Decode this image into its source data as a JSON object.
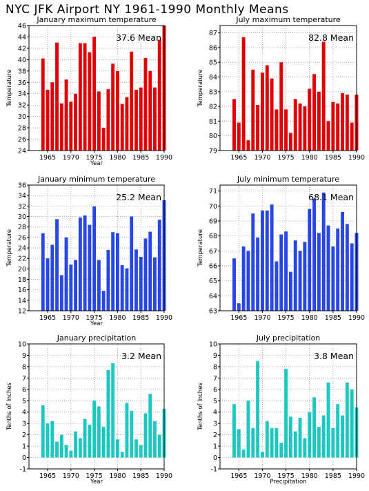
{
  "title": "NYC JFK Airport NY   1961-1990 Monthly Means",
  "colors": {
    "red": "#e00000",
    "blue": "#2846e6",
    "teal": "#1ec8c0"
  },
  "chart_data": [
    {
      "type": "bar",
      "title": "January maximum temperature",
      "ylabel": "Temperature",
      "xlabel": "Year",
      "mean_label": "37.6  Mean",
      "color": "red",
      "ylim": [
        24,
        46
      ],
      "yticks": [
        24,
        26,
        28,
        30,
        32,
        34,
        36,
        38,
        40,
        42,
        44,
        46
      ],
      "xlim": [
        1961,
        1990
      ],
      "xticks": [
        1965,
        1970,
        1975,
        1980,
        1985,
        1990
      ],
      "x": [
        1964,
        1965,
        1966,
        1967,
        1968,
        1969,
        1970,
        1971,
        1972,
        1973,
        1974,
        1975,
        1976,
        1977,
        1978,
        1979,
        1980,
        1981,
        1982,
        1983,
        1984,
        1985,
        1986,
        1987,
        1988,
        1989,
        1990
      ],
      "values": [
        40.2,
        34.7,
        36.0,
        43.0,
        32.3,
        36.5,
        32.6,
        34.0,
        42.9,
        42.9,
        41.3,
        44.0,
        34.4,
        28.0,
        34.8,
        39.3,
        38.0,
        32.2,
        33.4,
        41.4,
        34.7,
        35.1,
        40.3,
        38.0,
        35.1,
        43.5,
        46.0
      ]
    },
    {
      "type": "bar",
      "title": "July maximum temperature",
      "ylabel": "Temperature",
      "xlabel": "",
      "mean_label": "82.8  Mean",
      "color": "red",
      "ylim": [
        79,
        87.5
      ],
      "yticks": [
        79,
        80,
        81,
        82,
        83,
        84,
        85,
        86,
        87
      ],
      "xlim": [
        1961,
        1990
      ],
      "xticks": [
        1965,
        1970,
        1975,
        1980,
        1985,
        1990
      ],
      "x": [
        1964,
        1965,
        1966,
        1967,
        1968,
        1969,
        1970,
        1971,
        1972,
        1973,
        1974,
        1975,
        1976,
        1977,
        1978,
        1979,
        1980,
        1981,
        1982,
        1983,
        1984,
        1985,
        1986,
        1987,
        1988,
        1989,
        1990
      ],
      "values": [
        82.5,
        80.9,
        86.7,
        79.7,
        84.5,
        82.1,
        84.3,
        84.8,
        83.9,
        81.8,
        85.0,
        81.8,
        80.2,
        82.5,
        82.2,
        82.0,
        83.2,
        84.2,
        83.0,
        86.4,
        81.0,
        82.3,
        82.2,
        82.9,
        82.8,
        80.9,
        82.8
      ]
    },
    {
      "type": "bar",
      "title": "January minimum temperature",
      "ylabel": "Temperature",
      "xlabel": "Year",
      "mean_label": "25.2  Mean",
      "color": "blue",
      "ylim": [
        12,
        36
      ],
      "yticks": [
        12,
        14,
        16,
        18,
        20,
        22,
        24,
        26,
        28,
        30,
        32,
        34,
        36
      ],
      "xlim": [
        1961,
        1990
      ],
      "xticks": [
        1965,
        1970,
        1975,
        1980,
        1985,
        1990
      ],
      "x": [
        1964,
        1965,
        1966,
        1967,
        1968,
        1969,
        1970,
        1971,
        1972,
        1973,
        1974,
        1975,
        1976,
        1977,
        1978,
        1979,
        1980,
        1981,
        1982,
        1983,
        1984,
        1985,
        1986,
        1987,
        1988,
        1989,
        1990
      ],
      "values": [
        26.8,
        22.0,
        24.6,
        29.5,
        18.8,
        26.0,
        20.8,
        21.7,
        29.8,
        30.2,
        28.4,
        31.9,
        21.7,
        15.8,
        23.6,
        27.0,
        26.8,
        20.7,
        20.1,
        30.0,
        23.7,
        22.3,
        25.8,
        27.1,
        22.2,
        29.4,
        33.1
      ]
    },
    {
      "type": "bar",
      "title": "July minimum temperature",
      "ylabel": "Temperature",
      "xlabel": "",
      "mean_label": "68.1  Mean",
      "color": "blue",
      "ylim": [
        63,
        71.4
      ],
      "yticks": [
        63,
        64,
        65,
        66,
        67,
        68,
        69,
        70,
        71
      ],
      "xlim": [
        1961,
        1990
      ],
      "xticks": [
        1965,
        1970,
        1975,
        1980,
        1985,
        1990
      ],
      "x": [
        1964,
        1965,
        1966,
        1967,
        1968,
        1969,
        1970,
        1971,
        1972,
        1973,
        1974,
        1975,
        1976,
        1977,
        1978,
        1979,
        1980,
        1981,
        1982,
        1983,
        1984,
        1985,
        1986,
        1987,
        1988,
        1989,
        1990
      ],
      "values": [
        66.5,
        63.5,
        67.3,
        67.0,
        69.5,
        67.9,
        69.7,
        69.7,
        70.1,
        66.3,
        68.1,
        68.3,
        65.6,
        67.7,
        67.0,
        67.6,
        69.8,
        70.5,
        68.2,
        70.9,
        68.7,
        67.3,
        68.5,
        69.6,
        68.8,
        67.5,
        68.2
      ]
    },
    {
      "type": "bar",
      "title": "January precipitation",
      "ylabel": "Tenths of Inches",
      "xlabel": "Year",
      "mean_label": "3.2  Mean",
      "color": "teal",
      "ylim": [
        -1,
        10
      ],
      "yticks": [
        -1,
        0,
        1,
        2,
        3,
        4,
        5,
        6,
        7,
        8,
        9,
        10
      ],
      "xlim": [
        1961,
        1990
      ],
      "xticks": [
        1965,
        1970,
        1975,
        1980,
        1985,
        1990
      ],
      "x": [
        1964,
        1965,
        1966,
        1967,
        1968,
        1969,
        1970,
        1971,
        1972,
        1973,
        1974,
        1975,
        1976,
        1977,
        1978,
        1979,
        1980,
        1981,
        1982,
        1983,
        1984,
        1985,
        1986,
        1987,
        1988,
        1989,
        1990
      ],
      "values": [
        4.6,
        3.0,
        3.2,
        1.4,
        2.0,
        1.1,
        0.6,
        2.3,
        1.7,
        3.4,
        2.9,
        5.0,
        4.5,
        2.7,
        7.7,
        8.3,
        1.6,
        0.5,
        4.8,
        4.1,
        1.6,
        1.1,
        3.9,
        5.6,
        3.2,
        2.0,
        4.3
      ]
    },
    {
      "type": "bar",
      "title": "July precipitation",
      "ylabel": "Tenths of Inches",
      "xlabel": "Precipitation",
      "mean_label": "3.8  Mean",
      "color": "teal",
      "ylim": [
        -1,
        10
      ],
      "yticks": [
        -1,
        0,
        1,
        2,
        3,
        4,
        5,
        6,
        7,
        8,
        9,
        10
      ],
      "xlim": [
        1961,
        1990
      ],
      "xticks": [
        1965,
        1970,
        1975,
        1980,
        1985,
        1990
      ],
      "x": [
        1964,
        1965,
        1966,
        1967,
        1968,
        1969,
        1970,
        1971,
        1972,
        1973,
        1974,
        1975,
        1976,
        1977,
        1978,
        1979,
        1980,
        1981,
        1982,
        1983,
        1984,
        1985,
        1986,
        1987,
        1988,
        1989,
        1990
      ],
      "values": [
        4.7,
        2.5,
        0.7,
        5.0,
        2.6,
        8.5,
        0.5,
        3.2,
        2.6,
        2.6,
        1.3,
        7.8,
        3.6,
        2.3,
        3.5,
        1.7,
        4.0,
        5.3,
        2.7,
        3.7,
        6.6,
        2.6,
        4.7,
        3.7,
        6.6,
        6.0,
        4.4
      ]
    }
  ]
}
